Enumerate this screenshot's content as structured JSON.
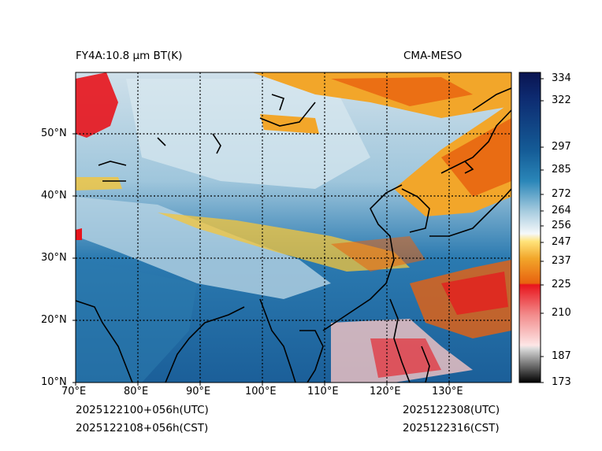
{
  "title": {
    "left": "FY4A:10.8 µm BT(K)",
    "right": "CMA-MESO"
  },
  "footer": {
    "init_utc": "2025122100+056h(UTC)",
    "init_cst": "2025122108+056h(CST)",
    "valid_utc": "2025122308(UTC)",
    "valid_cst": "2025122316(CST)"
  },
  "map": {
    "lon_range": [
      70,
      140
    ],
    "lat_range": [
      10,
      60
    ],
    "lon_ticks": [
      "70°E",
      "80°E",
      "90°E",
      "100°E",
      "110°E",
      "120°E",
      "130°E"
    ],
    "lat_ticks": [
      "10°N",
      "20°N",
      "30°N",
      "40°N",
      "50°N"
    ]
  },
  "colorbar": {
    "unit": "K",
    "range": [
      173,
      340
    ],
    "labels": [
      "334",
      "322",
      "297",
      "285",
      "272",
      "264",
      "256",
      "247",
      "237",
      "225",
      "210",
      "187",
      "173"
    ],
    "colors": {
      "navy": "#0a1450",
      "blue": "#1a6aa8",
      "light": "#cfe3ee",
      "yellow": "#f5c63a",
      "orange": "#e8620f",
      "red": "#e8141c",
      "pink": "#f6c6c4",
      "gray": "#7a7a7a"
    }
  }
}
